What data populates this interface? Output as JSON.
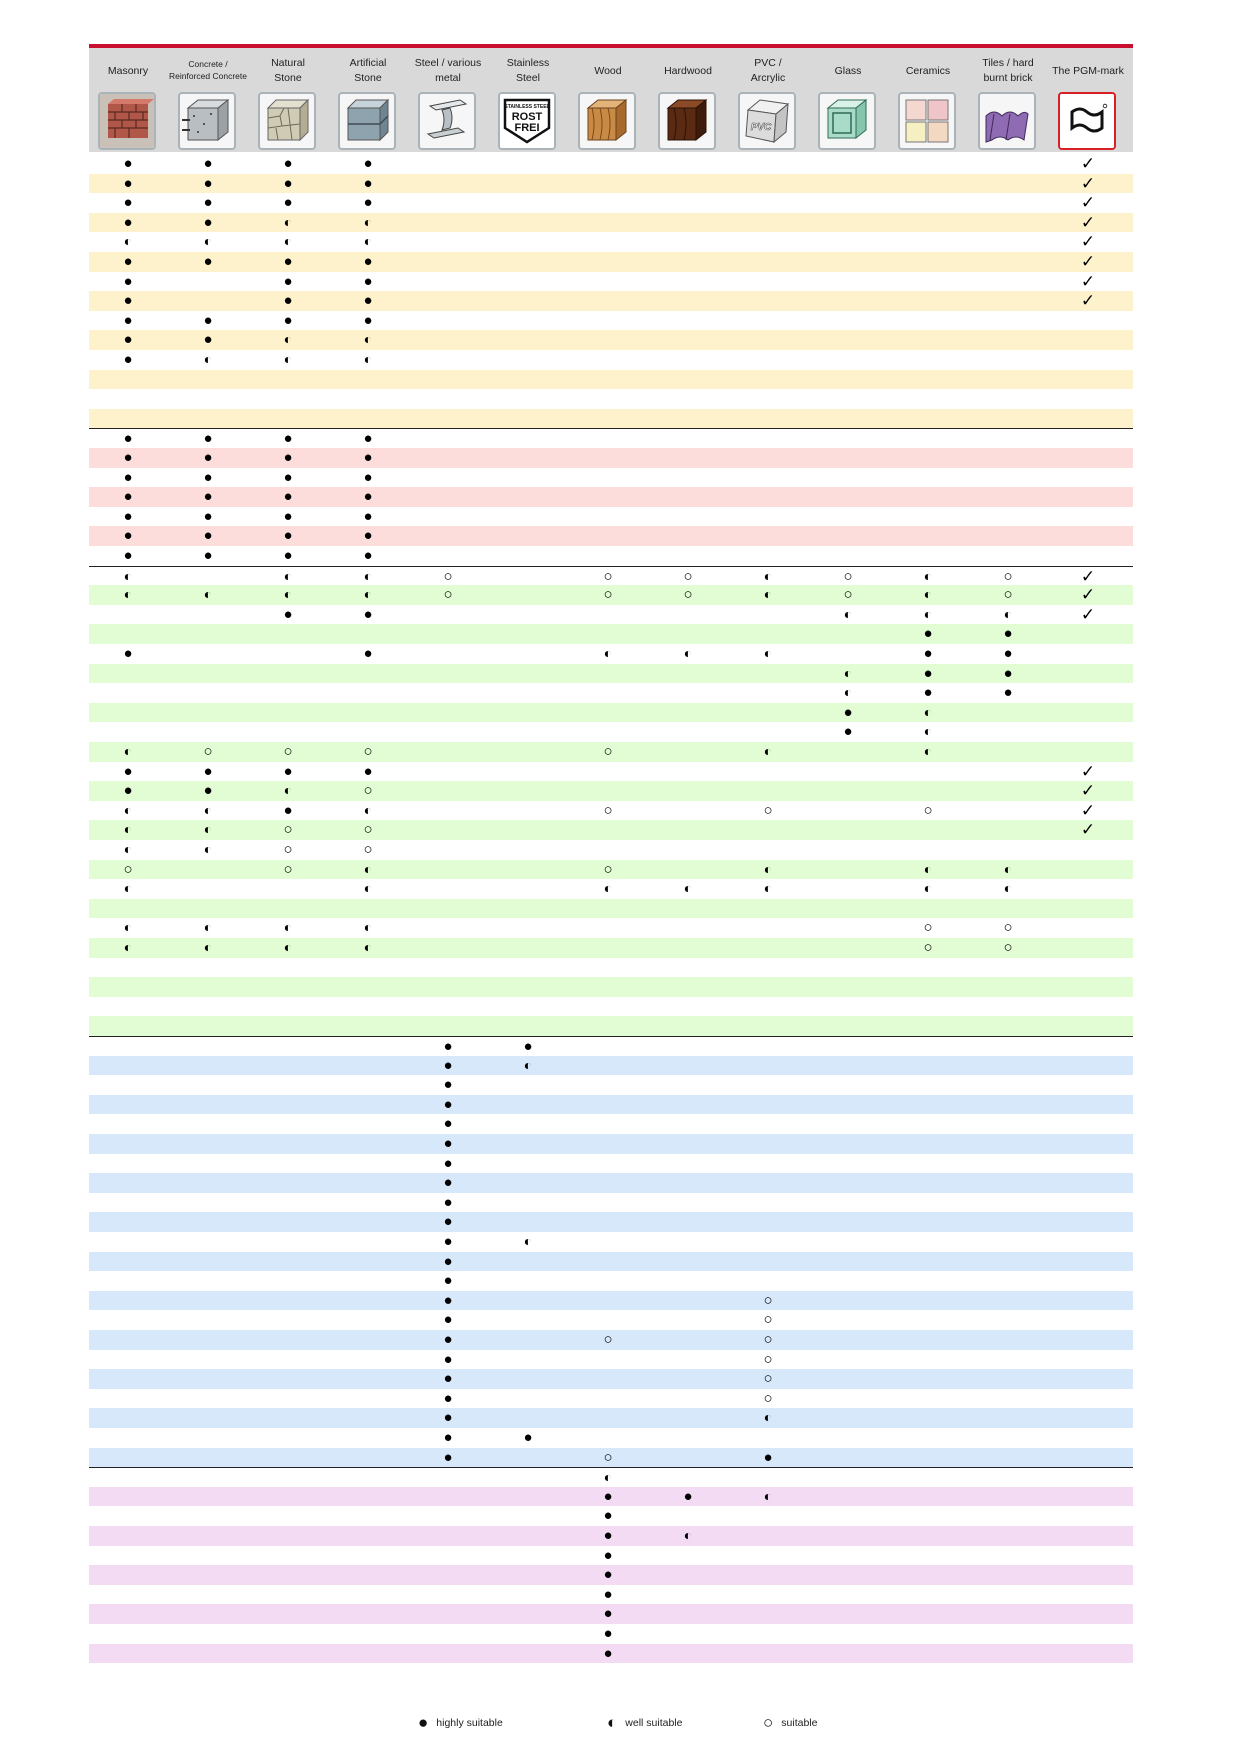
{
  "colors": {
    "accent": "#c8102e",
    "header_bg": "#d9d9d9",
    "section_yellow": "#fdf2cc",
    "section_red": "#fddcdc",
    "section_green": "#e2fcd4",
    "section_blue": "#d7e8fb",
    "section_purple": "#f3dcf3",
    "separator": "#222222"
  },
  "symbols": {
    "full": "●",
    "half": "◐",
    "empty": "○",
    "check": "✓"
  },
  "columns": [
    {
      "key": "masonry",
      "label": "Masonry",
      "icon": "brick-wall-icon"
    },
    {
      "key": "concrete",
      "label": "Concrete /\nReinforced Concrete",
      "icon": "concrete-block-icon",
      "small": true
    },
    {
      "key": "natural_stone",
      "label": "Natural\nStone",
      "icon": "natural-stone-icon"
    },
    {
      "key": "artificial_stone",
      "label": "Artificial\nStone",
      "icon": "artificial-stone-icon"
    },
    {
      "key": "steel",
      "label": "Steel / various\nmetal",
      "icon": "steel-beam-icon"
    },
    {
      "key": "stainless",
      "label": "Stainless\nSteel",
      "icon": "stainless-steel-shield-icon",
      "icon_text": [
        "STAINLESS STEEL",
        "ROST",
        "FREI"
      ]
    },
    {
      "key": "wood",
      "label": "Wood",
      "icon": "wood-block-icon"
    },
    {
      "key": "hardwood",
      "label": "Hardwood",
      "icon": "hardwood-block-icon"
    },
    {
      "key": "pvc",
      "label": "PVC /\nArcrylic",
      "icon": "pvc-block-icon",
      "icon_text": [
        "PVC"
      ]
    },
    {
      "key": "glass",
      "label": "Glass",
      "icon": "glass-block-icon"
    },
    {
      "key": "ceramics",
      "label": "Ceramics",
      "icon": "ceramic-tiles-icon"
    },
    {
      "key": "tiles",
      "label": "Tiles / hard\nburnt brick",
      "icon": "roof-tiles-icon"
    },
    {
      "key": "pgm",
      "label": "The PGM-mark",
      "icon": "pgm-mark-icon"
    }
  ],
  "sections": [
    {
      "key": "yellow",
      "rows": [
        [
          "F",
          "F",
          "F",
          "F",
          "",
          "",
          "",
          "",
          "",
          "",
          "",
          "",
          "C"
        ],
        [
          "F",
          "F",
          "F",
          "F",
          "",
          "",
          "",
          "",
          "",
          "",
          "",
          "",
          "C"
        ],
        [
          "F",
          "F",
          "F",
          "F",
          "",
          "",
          "",
          "",
          "",
          "",
          "",
          "",
          "C"
        ],
        [
          "F",
          "F",
          "H",
          "H",
          "",
          "",
          "",
          "",
          "",
          "",
          "",
          "",
          "C"
        ],
        [
          "H",
          "H",
          "H",
          "H",
          "",
          "",
          "",
          "",
          "",
          "",
          "",
          "",
          "C"
        ],
        [
          "F",
          "F",
          "F",
          "F",
          "",
          "",
          "",
          "",
          "",
          "",
          "",
          "",
          "C"
        ],
        [
          "F",
          "",
          "F",
          "F",
          "",
          "",
          "",
          "",
          "",
          "",
          "",
          "",
          "C"
        ],
        [
          "F",
          "",
          "F",
          "F",
          "",
          "",
          "",
          "",
          "",
          "",
          "",
          "",
          "C"
        ],
        [
          "F",
          "F",
          "F",
          "F",
          "",
          "",
          "",
          "",
          "",
          "",
          "",
          "",
          ""
        ],
        [
          "F",
          "F",
          "H",
          "H",
          "",
          "",
          "",
          "",
          "",
          "",
          "",
          "",
          ""
        ],
        [
          "F",
          "H",
          "H",
          "H",
          "",
          "",
          "",
          "",
          "",
          "",
          "",
          "",
          ""
        ],
        [
          "",
          "",
          "",
          "",
          "",
          "",
          "",
          "",
          "",
          "",
          "",
          "",
          ""
        ],
        [
          "",
          "",
          "",
          "",
          "",
          "",
          "",
          "",
          "",
          "",
          "",
          "",
          ""
        ],
        [
          "",
          "",
          "",
          "",
          "",
          "",
          "",
          "",
          "",
          "",
          "",
          "",
          ""
        ]
      ]
    },
    {
      "key": "red",
      "rows": [
        [
          "F",
          "F",
          "F",
          "F",
          "",
          "",
          "",
          "",
          "",
          "",
          "",
          "",
          ""
        ],
        [
          "F",
          "F",
          "F",
          "F",
          "",
          "",
          "",
          "",
          "",
          "",
          "",
          "",
          ""
        ],
        [
          "F",
          "F",
          "F",
          "F",
          "",
          "",
          "",
          "",
          "",
          "",
          "",
          "",
          ""
        ],
        [
          "F",
          "F",
          "F",
          "F",
          "",
          "",
          "",
          "",
          "",
          "",
          "",
          "",
          ""
        ],
        [
          "F",
          "F",
          "F",
          "F",
          "",
          "",
          "",
          "",
          "",
          "",
          "",
          "",
          ""
        ],
        [
          "F",
          "F",
          "F",
          "F",
          "",
          "",
          "",
          "",
          "",
          "",
          "",
          "",
          ""
        ],
        [
          "F",
          "F",
          "F",
          "F",
          "",
          "",
          "",
          "",
          "",
          "",
          "",
          "",
          ""
        ]
      ]
    },
    {
      "key": "green",
      "rows": [
        [
          "H",
          "",
          "H",
          "H",
          "E",
          "",
          "E",
          "E",
          "H",
          "E",
          "H",
          "E",
          "C"
        ],
        [
          "H",
          "H",
          "H",
          "H",
          "E",
          "",
          "E",
          "E",
          "H",
          "E",
          "H",
          "E",
          "C"
        ],
        [
          "",
          "",
          "F",
          "F",
          "",
          "",
          "",
          "",
          "",
          "H",
          "H",
          "H",
          "C"
        ],
        [
          "",
          "",
          "",
          "",
          "",
          "",
          "",
          "",
          "",
          "",
          "F",
          "F",
          ""
        ],
        [
          "F",
          "",
          "",
          "F",
          "",
          "",
          "H",
          "H",
          "H",
          "",
          "F",
          "F",
          ""
        ],
        [
          "",
          "",
          "",
          "",
          "",
          "",
          "",
          "",
          "",
          "H",
          "F",
          "F",
          ""
        ],
        [
          "",
          "",
          "",
          "",
          "",
          "",
          "",
          "",
          "",
          "H",
          "F",
          "F",
          ""
        ],
        [
          "",
          "",
          "",
          "",
          "",
          "",
          "",
          "",
          "",
          "F",
          "H",
          "",
          ""
        ],
        [
          "",
          "",
          "",
          "",
          "",
          "",
          "",
          "",
          "",
          "F",
          "H",
          "",
          ""
        ],
        [
          "H",
          "E",
          "E",
          "E",
          "",
          "",
          "E",
          "",
          "H",
          "",
          "H",
          "",
          ""
        ],
        [
          "F",
          "F",
          "F",
          "F",
          "",
          "",
          "",
          "",
          "",
          "",
          "",
          "",
          "C"
        ],
        [
          "F",
          "F",
          "H",
          "E",
          "",
          "",
          "",
          "",
          "",
          "",
          "",
          "",
          "C"
        ],
        [
          "H",
          "H",
          "F",
          "H",
          "",
          "",
          "E",
          "",
          "E",
          "",
          "E",
          "",
          "C"
        ],
        [
          "H",
          "H",
          "E",
          "E",
          "",
          "",
          "",
          "",
          "",
          "",
          "",
          "",
          "C"
        ],
        [
          "H",
          "H",
          "E",
          "E",
          "",
          "",
          "",
          "",
          "",
          "",
          "",
          "",
          ""
        ],
        [
          "E",
          "",
          "E",
          "H",
          "",
          "",
          "E",
          "",
          "H",
          "",
          "H",
          "H",
          ""
        ],
        [
          "H",
          "",
          "",
          "H",
          "",
          "",
          "H",
          "H",
          "H",
          "",
          "H",
          "H",
          ""
        ],
        [
          "",
          "",
          "",
          "",
          "",
          "",
          "",
          "",
          "",
          "",
          "",
          "",
          ""
        ],
        [
          "H",
          "H",
          "H",
          "H",
          "",
          "",
          "",
          "",
          "",
          "",
          "E",
          "E",
          ""
        ],
        [
          "H",
          "H",
          "H",
          "H",
          "",
          "",
          "",
          "",
          "",
          "",
          "E",
          "E",
          ""
        ],
        [
          "",
          "",
          "",
          "",
          "",
          "",
          "",
          "",
          "",
          "",
          "",
          "",
          ""
        ],
        [
          "",
          "",
          "",
          "",
          "",
          "",
          "",
          "",
          "",
          "",
          "",
          "",
          ""
        ],
        [
          "",
          "",
          "",
          "",
          "",
          "",
          "",
          "",
          "",
          "",
          "",
          "",
          ""
        ],
        [
          "",
          "",
          "",
          "",
          "",
          "",
          "",
          "",
          "",
          "",
          "",
          "",
          ""
        ]
      ]
    },
    {
      "key": "blue",
      "rows": [
        [
          "",
          "",
          "",
          "",
          "F",
          "F",
          "",
          "",
          "",
          "",
          "",
          "",
          ""
        ],
        [
          "",
          "",
          "",
          "",
          "F",
          "H",
          "",
          "",
          "",
          "",
          "",
          "",
          ""
        ],
        [
          "",
          "",
          "",
          "",
          "F",
          "",
          "",
          "",
          "",
          "",
          "",
          "",
          ""
        ],
        [
          "",
          "",
          "",
          "",
          "F",
          "",
          "",
          "",
          "",
          "",
          "",
          "",
          ""
        ],
        [
          "",
          "",
          "",
          "",
          "F",
          "",
          "",
          "",
          "",
          "",
          "",
          "",
          ""
        ],
        [
          "",
          "",
          "",
          "",
          "F",
          "",
          "",
          "",
          "",
          "",
          "",
          "",
          ""
        ],
        [
          "",
          "",
          "",
          "",
          "F",
          "",
          "",
          "",
          "",
          "",
          "",
          "",
          ""
        ],
        [
          "",
          "",
          "",
          "",
          "F",
          "",
          "",
          "",
          "",
          "",
          "",
          "",
          ""
        ],
        [
          "",
          "",
          "",
          "",
          "F",
          "",
          "",
          "",
          "",
          "",
          "",
          "",
          ""
        ],
        [
          "",
          "",
          "",
          "",
          "F",
          "",
          "",
          "",
          "",
          "",
          "",
          "",
          ""
        ],
        [
          "",
          "",
          "",
          "",
          "F",
          "H",
          "",
          "",
          "",
          "",
          "",
          "",
          ""
        ],
        [
          "",
          "",
          "",
          "",
          "F",
          "",
          "",
          "",
          "",
          "",
          "",
          "",
          ""
        ],
        [
          "",
          "",
          "",
          "",
          "F",
          "",
          "",
          "",
          "",
          "",
          "",
          "",
          ""
        ],
        [
          "",
          "",
          "",
          "",
          "F",
          "",
          "",
          "",
          "E",
          "",
          "",
          "",
          ""
        ],
        [
          "",
          "",
          "",
          "",
          "F",
          "",
          "",
          "",
          "E",
          "",
          "",
          "",
          ""
        ],
        [
          "",
          "",
          "",
          "",
          "F",
          "",
          "E",
          "",
          "E",
          "",
          "",
          "",
          ""
        ],
        [
          "",
          "",
          "",
          "",
          "F",
          "",
          "",
          "",
          "E",
          "",
          "",
          "",
          ""
        ],
        [
          "",
          "",
          "",
          "",
          "F",
          "",
          "",
          "",
          "E",
          "",
          "",
          "",
          ""
        ],
        [
          "",
          "",
          "",
          "",
          "F",
          "",
          "",
          "",
          "E",
          "",
          "",
          "",
          ""
        ],
        [
          "",
          "",
          "",
          "",
          "F",
          "",
          "",
          "",
          "H",
          "",
          "",
          "",
          ""
        ],
        [
          "",
          "",
          "",
          "",
          "F",
          "F",
          "",
          "",
          "",
          "",
          "",
          "",
          ""
        ],
        [
          "",
          "",
          "",
          "",
          "F",
          "",
          "E",
          "",
          "F",
          "",
          "",
          "",
          ""
        ]
      ]
    },
    {
      "key": "purple",
      "rows": [
        [
          "",
          "",
          "",
          "",
          "",
          "",
          "H",
          "",
          "",
          "",
          "",
          "",
          ""
        ],
        [
          "",
          "",
          "",
          "",
          "",
          "",
          "F",
          "F",
          "H",
          "",
          "",
          "",
          ""
        ],
        [
          "",
          "",
          "",
          "",
          "",
          "",
          "F",
          "",
          "",
          "",
          "",
          "",
          ""
        ],
        [
          "",
          "",
          "",
          "",
          "",
          "",
          "F",
          "H",
          "",
          "",
          "",
          "",
          ""
        ],
        [
          "",
          "",
          "",
          "",
          "",
          "",
          "F",
          "",
          "",
          "",
          "",
          "",
          ""
        ],
        [
          "",
          "",
          "",
          "",
          "",
          "",
          "F",
          "",
          "",
          "",
          "",
          "",
          ""
        ],
        [
          "",
          "",
          "",
          "",
          "",
          "",
          "F",
          "",
          "",
          "",
          "",
          "",
          ""
        ],
        [
          "",
          "",
          "",
          "",
          "",
          "",
          "F",
          "",
          "",
          "",
          "",
          "",
          ""
        ],
        [
          "",
          "",
          "",
          "",
          "",
          "",
          "F",
          "",
          "",
          "",
          "",
          "",
          ""
        ],
        [
          "",
          "",
          "",
          "",
          "",
          "",
          "F",
          "",
          "",
          "",
          "",
          "",
          ""
        ]
      ]
    }
  ],
  "legend": [
    {
      "symbol": "●",
      "label": "highly suitable"
    },
    {
      "symbol": "◐",
      "label": "well suitable"
    },
    {
      "symbol": "○",
      "label": "suitable"
    }
  ]
}
